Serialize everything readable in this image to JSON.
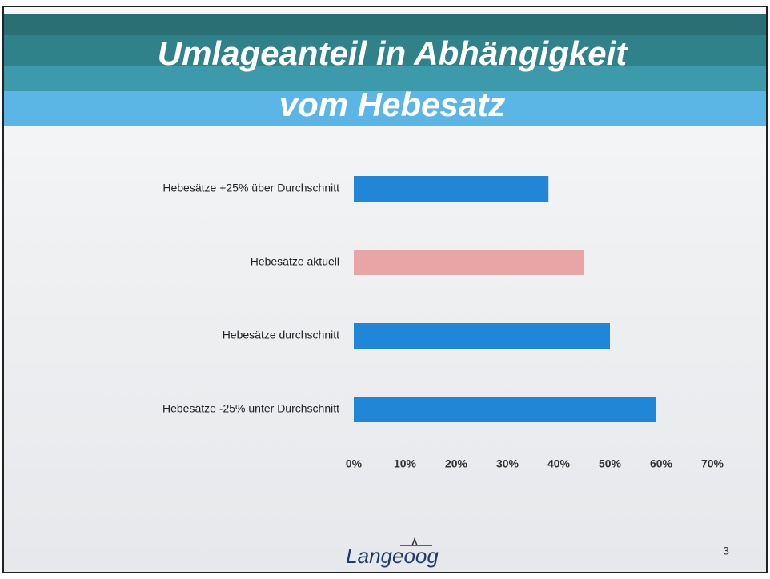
{
  "chart_data": {
    "type": "barh",
    "title": [
      "Umlageanteil in Abhängigkeit",
      "vom Hebesatz"
    ],
    "categories": [
      "Hebesätze +25% über Durchschnitt",
      "Hebesätze aktuell",
      "Hebesätze durchschnitt",
      "Hebesätze -25% unter Durchschnitt"
    ],
    "values": [
      38,
      45,
      50,
      59
    ],
    "colors": [
      "#1f86d8",
      "#e9a5a5",
      "#1f86d8",
      "#1f86d8"
    ],
    "xlim": [
      0,
      70
    ],
    "xticks": [
      {
        "value": 0,
        "label": "0%"
      },
      {
        "value": 10,
        "label": "10%"
      },
      {
        "value": 20,
        "label": "20%"
      },
      {
        "value": 30,
        "label": "30%"
      },
      {
        "value": 40,
        "label": "40%"
      },
      {
        "value": 50,
        "label": "50%"
      },
      {
        "value": 60,
        "label": "60%"
      },
      {
        "value": 70,
        "label": "70%"
      }
    ],
    "grid": false
  },
  "footer": {
    "logo": "Langeoog",
    "page_number": "3"
  }
}
